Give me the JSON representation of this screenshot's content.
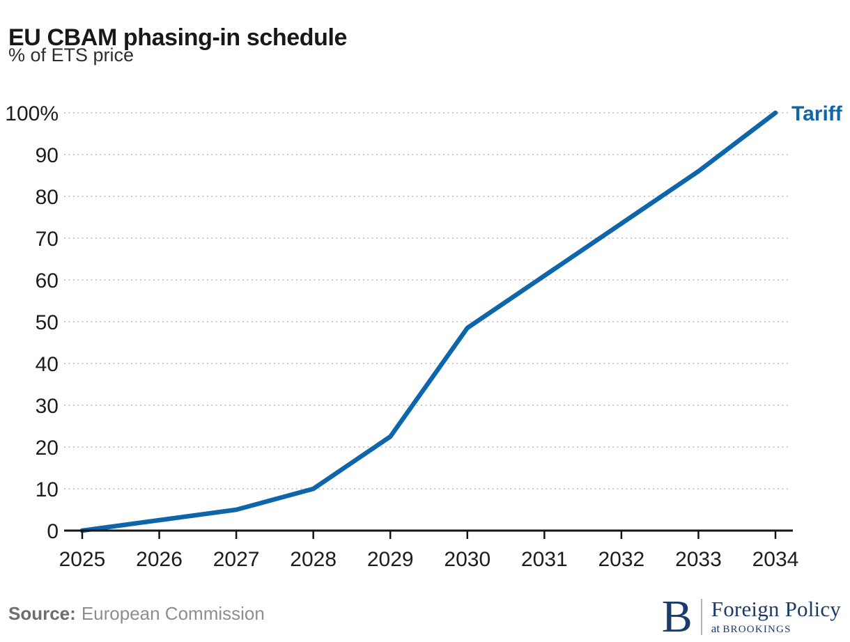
{
  "chart_data": {
    "type": "line",
    "title": "EU CBAM phasing-in schedule",
    "subtitle": "% of ETS price",
    "x": [
      2025,
      2026,
      2027,
      2028,
      2029,
      2030,
      2031,
      2032,
      2033,
      2034
    ],
    "xtick_labels": [
      "2025",
      "2026",
      "2027",
      "2028",
      "2029",
      "2030",
      "2031",
      "2032",
      "2033",
      "2034"
    ],
    "ytick_values": [
      0,
      10,
      20,
      30,
      40,
      50,
      60,
      70,
      80,
      90,
      100
    ],
    "ytick_labels": [
      "0",
      "10",
      "20",
      "30",
      "40",
      "50",
      "60",
      "70",
      "80",
      "90",
      "100%"
    ],
    "ylim": [
      0,
      100
    ],
    "grid": "horizontal-dotted",
    "legend": "end-of-line-label",
    "series": [
      {
        "name": "Tariff",
        "values": [
          0,
          2.5,
          5,
          10,
          22.5,
          48.5,
          61,
          73.5,
          86,
          100
        ]
      }
    ],
    "colors": {
      "line": "#0d66a9",
      "grid": "#c9c9c9",
      "axis": "#141414",
      "tick_text": "#1d1d1d"
    }
  },
  "footer": {
    "source_label": "Source:",
    "source_value": "European Commission"
  },
  "logo": {
    "b": "B",
    "line1": "Foreign Policy",
    "line2_prefix": "at",
    "line2": "BROOKINGS"
  }
}
